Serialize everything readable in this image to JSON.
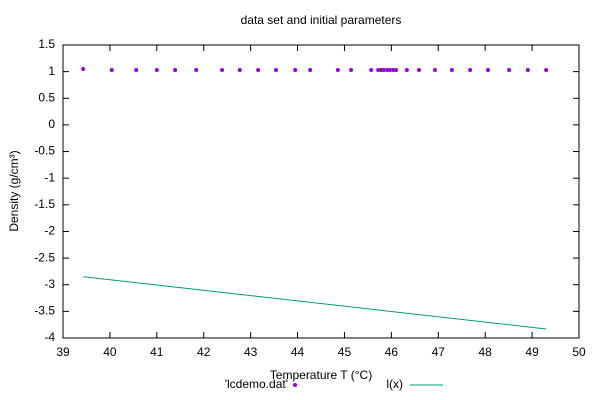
{
  "chart_data": {
    "type": "scatter",
    "title": "data set and initial parameters",
    "x_label": "Temperature T (°C)",
    "y_label": "Density (g/cm³)",
    "xlim": [
      39,
      50
    ],
    "xticks": [
      39,
      40,
      41,
      42,
      43,
      44,
      45,
      46,
      47,
      48,
      49,
      50
    ],
    "ylim": [
      -4,
      1.5
    ],
    "yticks": [
      -4,
      -3.5,
      -3,
      -2.5,
      -2,
      -1.5,
      -1,
      -0.5,
      0,
      0.5,
      1,
      1.5
    ],
    "legend": "bottom",
    "series": [
      {
        "name": "'lcdemo.dat'",
        "type": "scatter",
        "color": "#9400d3",
        "x": [
          39.43,
          40.04,
          40.56,
          41.0,
          41.39,
          41.84,
          42.39,
          42.77,
          43.16,
          43.54,
          43.95,
          44.27,
          44.86,
          45.14,
          45.57,
          45.72,
          45.78,
          45.84,
          45.91,
          45.97,
          46.04,
          46.1,
          46.33,
          46.59,
          46.93,
          47.29,
          47.68,
          48.06,
          48.51,
          48.91,
          49.3
        ],
        "values": [
          1.05,
          1.03,
          1.03,
          1.03,
          1.03,
          1.03,
          1.03,
          1.03,
          1.03,
          1.03,
          1.03,
          1.03,
          1.03,
          1.03,
          1.03,
          1.03,
          1.03,
          1.03,
          1.03,
          1.03,
          1.03,
          1.03,
          1.03,
          1.03,
          1.03,
          1.03,
          1.03,
          1.03,
          1.03,
          1.03,
          1.03
        ]
      },
      {
        "name": "l(x)",
        "type": "line",
        "color": "#009e73",
        "x": [
          39.43,
          49.3
        ],
        "values": [
          -2.85,
          -3.83
        ]
      }
    ]
  }
}
